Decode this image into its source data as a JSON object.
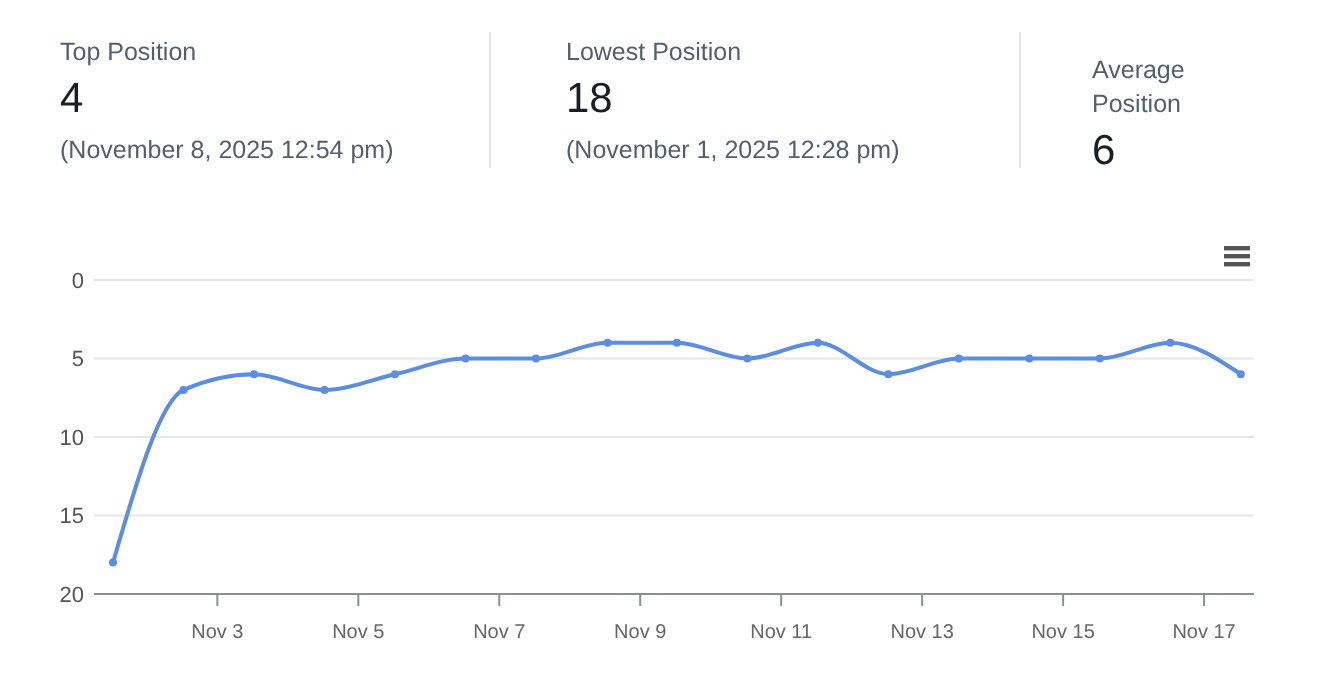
{
  "chart_data": [
    {
      "type": "other",
      "annotations": [
        "Top Position",
        "4",
        "(November 8, 2025 12:54 pm)",
        "Lowest Position",
        "18",
        "(November 1, 2025 12:28 pm)",
        "Average Position",
        "6"
      ]
    },
    {
      "type": "line",
      "x": [
        "2025-11-01T12:28",
        "2025-11-02T12:30",
        "2025-11-03T12:30",
        "2025-11-04T12:30",
        "2025-11-05T12:30",
        "2025-11-06T12:30",
        "2025-11-07T12:30",
        "2025-11-08T12:54",
        "2025-11-09T12:30",
        "2025-11-10T12:30",
        "2025-11-11T12:30",
        "2025-11-12T12:30",
        "2025-11-13T12:30",
        "2025-11-14T12:30",
        "2025-11-15T12:30",
        "2025-11-16T12:30",
        "2025-11-17T12:30"
      ],
      "series": [
        {
          "color": "#5b8ee0",
          "values": [
            18,
            7,
            6,
            7,
            6,
            5,
            5,
            4,
            4,
            5,
            4,
            6,
            5,
            5,
            5,
            4,
            6
          ]
        }
      ],
      "xlim": [
        "2025-11-01T06:00",
        "2025-11-17T17:00"
      ],
      "xticks": [
        {
          "value": "2025-11-03",
          "label": "Nov 3"
        },
        {
          "value": "2025-11-05",
          "label": "Nov 5"
        },
        {
          "value": "2025-11-07",
          "label": "Nov 7"
        },
        {
          "value": "2025-11-09",
          "label": "Nov 9"
        },
        {
          "value": "2025-11-11",
          "label": "Nov 11"
        },
        {
          "value": "2025-11-13",
          "label": "Nov 13"
        },
        {
          "value": "2025-11-15",
          "label": "Nov 15"
        },
        {
          "value": "2025-11-17",
          "label": "Nov 17"
        }
      ],
      "ylim": [
        20,
        0
      ],
      "yticks": [
        0,
        5,
        10,
        15,
        20
      ],
      "grid": "y",
      "marker": "circle",
      "line_style": "solid"
    }
  ]
}
